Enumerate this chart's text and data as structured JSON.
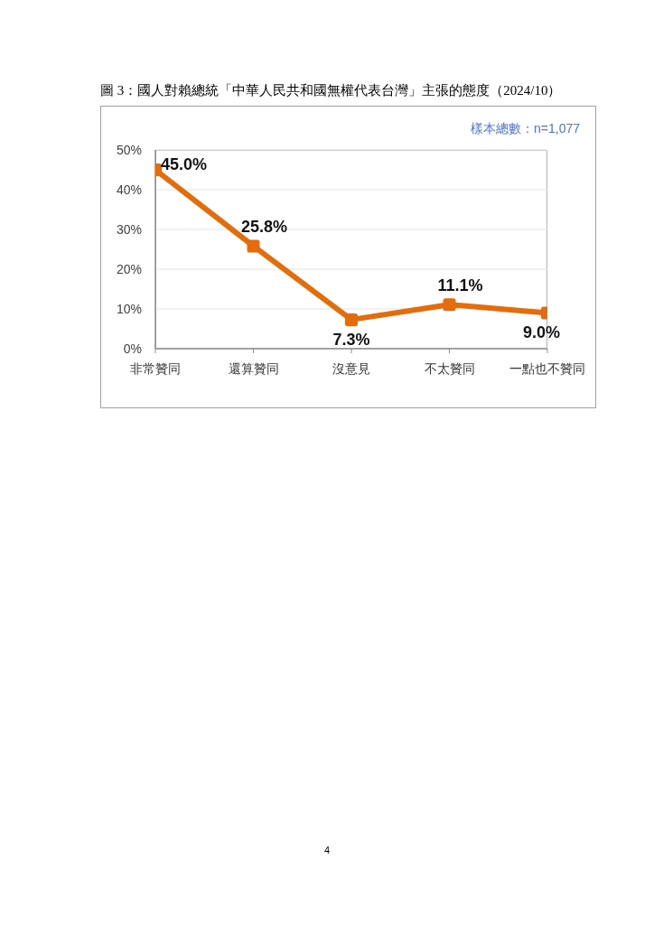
{
  "chart_data": {
    "type": "line",
    "title": "圖 3：國人對賴總統「中華人民共和國無權代表台灣」主張的態度（2024/10）",
    "annotations": [
      "樣本總數：n=1,077",
      "4"
    ],
    "categories": [
      "非常贊同",
      "還算贊同",
      "沒意見",
      "不太贊同",
      "一點也不贊同"
    ],
    "series": [
      {
        "color": "#e46c0a",
        "values": [
          45.0,
          25.8,
          7.3,
          11.1,
          9.0
        ],
        "value_labels": [
          "45.0%",
          "25.8%",
          "7.3%",
          "11.1%",
          "9.0%"
        ]
      }
    ],
    "ylim": [
      0,
      50
    ],
    "yticks": [
      {
        "value": 0,
        "label": "0%"
      },
      {
        "value": 10,
        "label": "10%"
      },
      {
        "value": 20,
        "label": "20%"
      },
      {
        "value": 30,
        "label": "30%"
      },
      {
        "value": 40,
        "label": "40%"
      },
      {
        "value": 50,
        "label": "50%"
      }
    ],
    "grid": "y",
    "marker": "square"
  }
}
